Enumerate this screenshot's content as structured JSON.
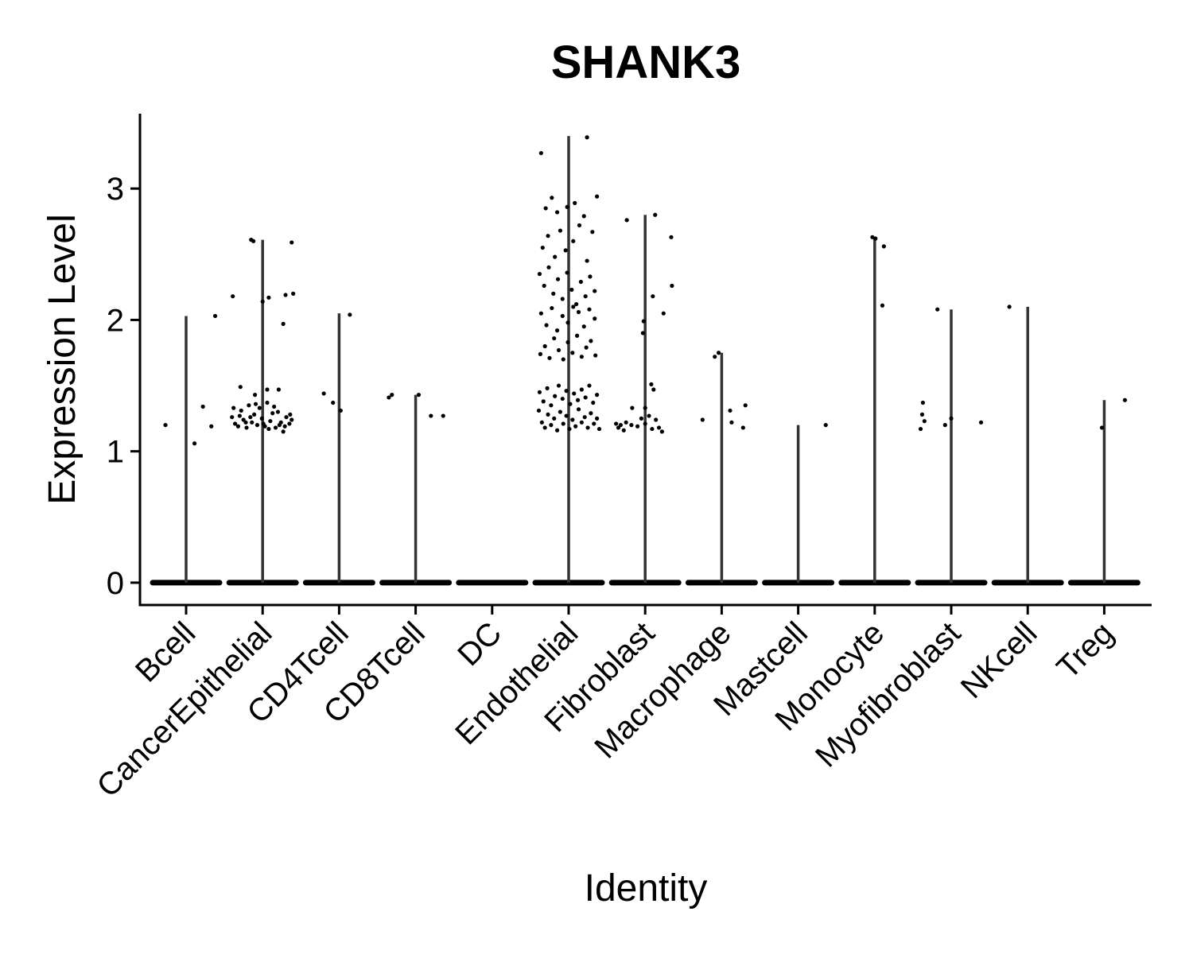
{
  "chart_data": {
    "type": "scatter",
    "subtype": "violin-jitter",
    "title": "SHANK3",
    "xlabel": "Identity",
    "ylabel": "Expression Level",
    "categories": [
      "Bcell",
      "CancerEpithelial",
      "CD4Tcell",
      "CD8Tcell",
      "DC",
      "Endothelial",
      "Fibroblast",
      "Macrophage",
      "Mastcell",
      "Monocyte",
      "Myofibroblast",
      "NKcell",
      "Treg"
    ],
    "max_values": [
      2.03,
      2.61,
      2.05,
      1.43,
      0.0,
      3.4,
      2.8,
      1.75,
      1.2,
      2.63,
      2.08,
      2.1,
      1.39
    ],
    "zero_marker": 0,
    "points": {
      "Bcell": [
        {
          "dx": -0.27,
          "y": 1.2
        },
        {
          "dx": 0.11,
          "y": 1.06
        },
        {
          "dx": 0.22,
          "y": 1.34
        },
        {
          "dx": 0.33,
          "y": 1.19
        },
        {
          "dx": 0.38,
          "y": 2.03
        }
      ],
      "CancerEpithelial": [
        {
          "dx": -0.39,
          "y": 2.18
        },
        {
          "dx": -0.15,
          "y": 2.61
        },
        {
          "dx": -0.12,
          "y": 2.6
        },
        {
          "dx": 0.0,
          "y": 2.14
        },
        {
          "dx": 0.08,
          "y": 2.17
        },
        {
          "dx": 0.21,
          "y": 1.47
        },
        {
          "dx": 0.27,
          "y": 1.97
        },
        {
          "dx": 0.3,
          "y": 2.19
        },
        {
          "dx": 0.38,
          "y": 2.59
        },
        {
          "dx": 0.4,
          "y": 2.2
        },
        {
          "dx": -0.29,
          "y": 1.49
        },
        {
          "dx": -0.1,
          "y": 1.43
        },
        {
          "dx": 0.06,
          "y": 1.47
        },
        {
          "dx": -0.4,
          "y": 1.26
        },
        {
          "dx": -0.36,
          "y": 1.21
        },
        {
          "dx": -0.32,
          "y": 1.19
        },
        {
          "dx": -0.28,
          "y": 1.31
        },
        {
          "dx": -0.25,
          "y": 1.24
        },
        {
          "dx": -0.21,
          "y": 1.18
        },
        {
          "dx": -0.18,
          "y": 1.35
        },
        {
          "dx": -0.14,
          "y": 1.22
        },
        {
          "dx": -0.11,
          "y": 1.28
        },
        {
          "dx": -0.07,
          "y": 1.2
        },
        {
          "dx": -0.04,
          "y": 1.33
        },
        {
          "dx": -0.01,
          "y": 1.25
        },
        {
          "dx": 0.03,
          "y": 1.19
        },
        {
          "dx": 0.06,
          "y": 1.37
        },
        {
          "dx": 0.1,
          "y": 1.23
        },
        {
          "dx": 0.13,
          "y": 1.29
        },
        {
          "dx": 0.17,
          "y": 1.18
        },
        {
          "dx": 0.2,
          "y": 1.3
        },
        {
          "dx": 0.24,
          "y": 1.22
        },
        {
          "dx": 0.27,
          "y": 1.15
        },
        {
          "dx": 0.31,
          "y": 1.26
        },
        {
          "dx": 0.35,
          "y": 1.21
        },
        {
          "dx": 0.38,
          "y": 1.24
        },
        {
          "dx": -0.38,
          "y": 1.33
        },
        {
          "dx": -0.3,
          "y": 1.27
        },
        {
          "dx": -0.22,
          "y": 1.22
        },
        {
          "dx": -0.16,
          "y": 1.26
        },
        {
          "dx": -0.09,
          "y": 1.36
        },
        {
          "dx": 0.01,
          "y": 1.21
        },
        {
          "dx": 0.08,
          "y": 1.17
        },
        {
          "dx": 0.15,
          "y": 1.34
        },
        {
          "dx": 0.22,
          "y": 1.2
        },
        {
          "dx": 0.29,
          "y": 1.19
        },
        {
          "dx": 0.36,
          "y": 1.28
        }
      ],
      "CD4Tcell": [
        {
          "dx": -0.2,
          "y": 1.44
        },
        {
          "dx": -0.08,
          "y": 1.37
        },
        {
          "dx": 0.02,
          "y": 1.31
        },
        {
          "dx": 0.14,
          "y": 2.04
        }
      ],
      "CD8Tcell": [
        {
          "dx": -0.35,
          "y": 1.41
        },
        {
          "dx": -0.31,
          "y": 1.43
        },
        {
          "dx": 0.04,
          "y": 1.43
        },
        {
          "dx": 0.2,
          "y": 1.27
        },
        {
          "dx": 0.36,
          "y": 1.27
        }
      ],
      "DC": [],
      "Endothelial": [
        {
          "dx": -0.36,
          "y": 3.27
        },
        {
          "dx": 0.24,
          "y": 3.39
        },
        {
          "dx": -0.3,
          "y": 2.85
        },
        {
          "dx": -0.22,
          "y": 2.93
        },
        {
          "dx": -0.15,
          "y": 2.82
        },
        {
          "dx": -0.02,
          "y": 2.86
        },
        {
          "dx": 0.08,
          "y": 2.89
        },
        {
          "dx": 0.2,
          "y": 2.79
        },
        {
          "dx": 0.37,
          "y": 2.94
        },
        {
          "dx": -0.34,
          "y": 2.55
        },
        {
          "dx": -0.27,
          "y": 2.64
        },
        {
          "dx": -0.18,
          "y": 2.48
        },
        {
          "dx": -0.11,
          "y": 2.68
        },
        {
          "dx": -0.04,
          "y": 2.53
        },
        {
          "dx": 0.06,
          "y": 2.6
        },
        {
          "dx": 0.14,
          "y": 2.72
        },
        {
          "dx": 0.24,
          "y": 2.45
        },
        {
          "dx": 0.31,
          "y": 2.67
        },
        {
          "dx": -0.38,
          "y": 2.35
        },
        {
          "dx": -0.32,
          "y": 2.26
        },
        {
          "dx": -0.26,
          "y": 2.4
        },
        {
          "dx": -0.2,
          "y": 2.2
        },
        {
          "dx": -0.14,
          "y": 2.31
        },
        {
          "dx": -0.08,
          "y": 2.16
        },
        {
          "dx": -0.02,
          "y": 2.36
        },
        {
          "dx": 0.04,
          "y": 2.23
        },
        {
          "dx": 0.1,
          "y": 2.12
        },
        {
          "dx": 0.16,
          "y": 2.29
        },
        {
          "dx": 0.22,
          "y": 2.18
        },
        {
          "dx": 0.28,
          "y": 2.33
        },
        {
          "dx": 0.34,
          "y": 2.22
        },
        {
          "dx": -0.36,
          "y": 2.05
        },
        {
          "dx": -0.29,
          "y": 1.96
        },
        {
          "dx": -0.22,
          "y": 2.09
        },
        {
          "dx": -0.15,
          "y": 1.92
        },
        {
          "dx": -0.08,
          "y": 2.03
        },
        {
          "dx": -0.01,
          "y": 1.98
        },
        {
          "dx": 0.06,
          "y": 2.1
        },
        {
          "dx": 0.13,
          "y": 2.06
        },
        {
          "dx": 0.2,
          "y": 1.95
        },
        {
          "dx": 0.27,
          "y": 2.08
        },
        {
          "dx": 0.34,
          "y": 2.01
        },
        {
          "dx": -0.37,
          "y": 1.74
        },
        {
          "dx": -0.31,
          "y": 1.8
        },
        {
          "dx": -0.25,
          "y": 1.71
        },
        {
          "dx": -0.19,
          "y": 1.86
        },
        {
          "dx": -0.13,
          "y": 1.77
        },
        {
          "dx": -0.07,
          "y": 1.7
        },
        {
          "dx": -0.01,
          "y": 1.83
        },
        {
          "dx": 0.05,
          "y": 1.75
        },
        {
          "dx": 0.11,
          "y": 1.88
        },
        {
          "dx": 0.17,
          "y": 1.72
        },
        {
          "dx": 0.23,
          "y": 1.79
        },
        {
          "dx": 0.29,
          "y": 1.84
        },
        {
          "dx": 0.35,
          "y": 1.73
        },
        {
          "dx": -0.38,
          "y": 1.45
        },
        {
          "dx": -0.33,
          "y": 1.38
        },
        {
          "dx": -0.28,
          "y": 1.48
        },
        {
          "dx": -0.23,
          "y": 1.35
        },
        {
          "dx": -0.18,
          "y": 1.42
        },
        {
          "dx": -0.13,
          "y": 1.5
        },
        {
          "dx": -0.08,
          "y": 1.4
        },
        {
          "dx": -0.03,
          "y": 1.46
        },
        {
          "dx": 0.02,
          "y": 1.36
        },
        {
          "dx": 0.07,
          "y": 1.44
        },
        {
          "dx": 0.12,
          "y": 1.39
        },
        {
          "dx": 0.17,
          "y": 1.47
        },
        {
          "dx": 0.22,
          "y": 1.41
        },
        {
          "dx": 0.27,
          "y": 1.5
        },
        {
          "dx": 0.32,
          "y": 1.37
        },
        {
          "dx": 0.37,
          "y": 1.43
        },
        {
          "dx": -0.39,
          "y": 1.31
        },
        {
          "dx": -0.35,
          "y": 1.22
        },
        {
          "dx": -0.31,
          "y": 1.18
        },
        {
          "dx": -0.27,
          "y": 1.28
        },
        {
          "dx": -0.23,
          "y": 1.2
        },
        {
          "dx": -0.19,
          "y": 1.25
        },
        {
          "dx": -0.15,
          "y": 1.16
        },
        {
          "dx": -0.11,
          "y": 1.3
        },
        {
          "dx": -0.07,
          "y": 1.21
        },
        {
          "dx": -0.03,
          "y": 1.27
        },
        {
          "dx": 0.01,
          "y": 1.17
        },
        {
          "dx": 0.05,
          "y": 1.24
        },
        {
          "dx": 0.09,
          "y": 1.19
        },
        {
          "dx": 0.13,
          "y": 1.32
        },
        {
          "dx": 0.17,
          "y": 1.22
        },
        {
          "dx": 0.21,
          "y": 1.26
        },
        {
          "dx": 0.25,
          "y": 1.18
        },
        {
          "dx": 0.29,
          "y": 1.29
        },
        {
          "dx": 0.33,
          "y": 1.21
        },
        {
          "dx": 0.37,
          "y": 1.25
        },
        {
          "dx": 0.4,
          "y": 1.17
        }
      ],
      "Fibroblast": [
        {
          "dx": -0.24,
          "y": 2.76
        },
        {
          "dx": 0.13,
          "y": 2.8
        },
        {
          "dx": 0.34,
          "y": 2.63
        },
        {
          "dx": 0.35,
          "y": 2.26
        },
        {
          "dx": 0.1,
          "y": 2.18
        },
        {
          "dx": 0.24,
          "y": 2.05
        },
        {
          "dx": -0.02,
          "y": 1.99
        },
        {
          "dx": -0.03,
          "y": 1.9
        },
        {
          "dx": 0.08,
          "y": 1.51
        },
        {
          "dx": 0.11,
          "y": 1.47
        },
        {
          "dx": 0.0,
          "y": 1.33
        },
        {
          "dx": -0.17,
          "y": 1.33
        },
        {
          "dx": -0.38,
          "y": 1.21
        },
        {
          "dx": -0.35,
          "y": 1.18
        },
        {
          "dx": -0.32,
          "y": 1.2
        },
        {
          "dx": -0.28,
          "y": 1.16
        },
        {
          "dx": -0.25,
          "y": 1.22
        },
        {
          "dx": -0.18,
          "y": 1.2
        },
        {
          "dx": -0.1,
          "y": 1.19
        },
        {
          "dx": -0.05,
          "y": 1.25
        },
        {
          "dx": 0.0,
          "y": 1.21
        },
        {
          "dx": 0.05,
          "y": 1.27
        },
        {
          "dx": 0.09,
          "y": 1.17
        },
        {
          "dx": 0.14,
          "y": 1.24
        },
        {
          "dx": 0.18,
          "y": 1.18
        },
        {
          "dx": 0.22,
          "y": 1.15
        }
      ],
      "Macrophage": [
        {
          "dx": -0.09,
          "y": 1.72
        },
        {
          "dx": -0.04,
          "y": 1.75
        },
        {
          "dx": -0.25,
          "y": 1.24
        },
        {
          "dx": 0.11,
          "y": 1.31
        },
        {
          "dx": 0.13,
          "y": 1.22
        },
        {
          "dx": 0.28,
          "y": 1.18
        },
        {
          "dx": 0.31,
          "y": 1.35
        }
      ],
      "Mastcell": [
        {
          "dx": 0.36,
          "y": 1.2
        }
      ],
      "Monocyte": [
        {
          "dx": -0.03,
          "y": 2.63
        },
        {
          "dx": 0.01,
          "y": 2.62
        },
        {
          "dx": 0.12,
          "y": 2.56
        },
        {
          "dx": 0.1,
          "y": 2.11
        }
      ],
      "Myofibroblast": [
        {
          "dx": -0.18,
          "y": 2.08
        },
        {
          "dx": -0.37,
          "y": 1.37
        },
        {
          "dx": -0.38,
          "y": 1.28
        },
        {
          "dx": -0.35,
          "y": 1.23
        },
        {
          "dx": -0.4,
          "y": 1.17
        },
        {
          "dx": -0.08,
          "y": 1.2
        },
        {
          "dx": 0.0,
          "y": 1.25
        },
        {
          "dx": 0.39,
          "y": 1.22
        }
      ],
      "NKcell": [
        {
          "dx": -0.24,
          "y": 2.1
        }
      ],
      "Treg": [
        {
          "dx": -0.03,
          "y": 1.18
        },
        {
          "dx": 0.27,
          "y": 1.39
        }
      ]
    },
    "ylim": [
      -0.17,
      3.57
    ],
    "yticks": [
      0,
      1,
      2,
      3
    ],
    "grid": false,
    "legend": "none"
  }
}
